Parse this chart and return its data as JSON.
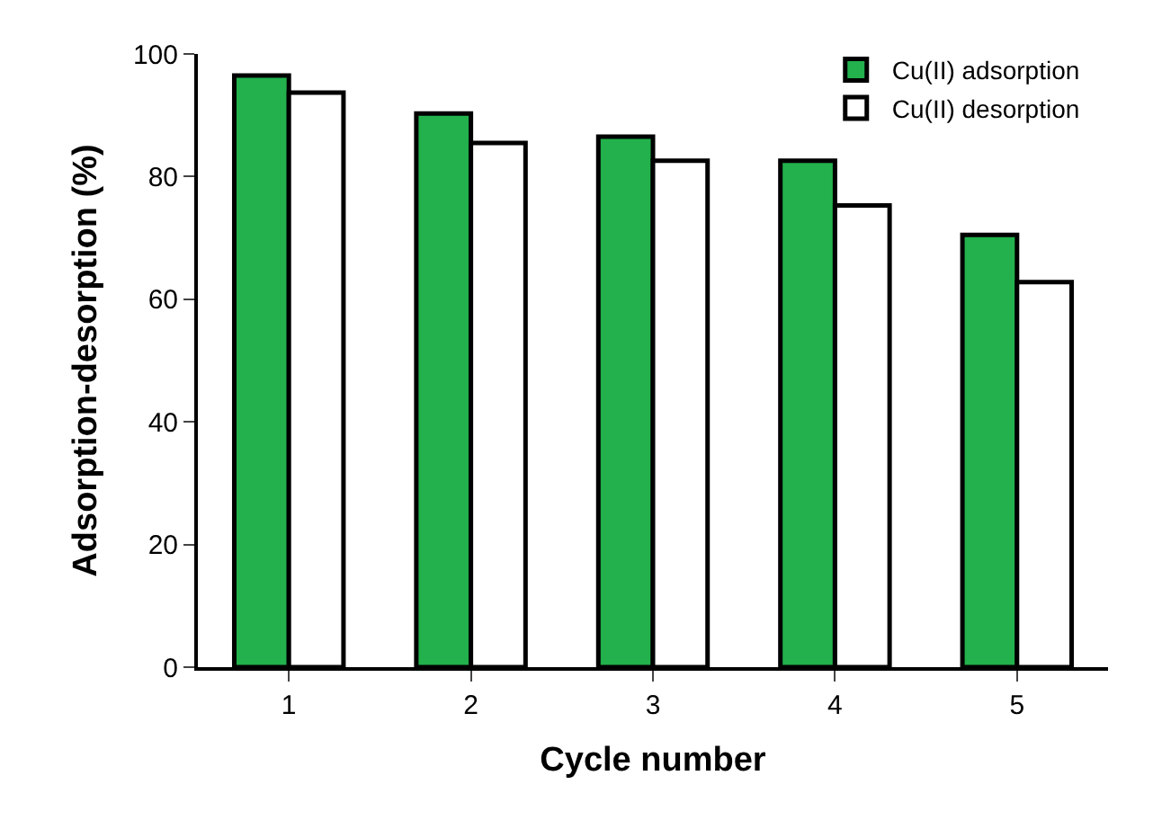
{
  "chart_data": {
    "type": "bar",
    "xlabel": "Cycle number",
    "ylabel": "Adsorption-desorption (%)",
    "categories": [
      "1",
      "2",
      "3",
      "4",
      "5"
    ],
    "series": [
      {
        "name": "Cu(II) adsorption",
        "color": "#22b14c",
        "values": [
          96.5,
          90.3,
          86.5,
          82.6,
          70.5
        ]
      },
      {
        "name": "Cu(II) desorption",
        "color": "#ffffff",
        "values": [
          93.7,
          85.5,
          82.6,
          75.3,
          62.8
        ]
      }
    ],
    "ylim": [
      0,
      100
    ],
    "yticks": [
      0,
      20,
      40,
      60,
      80,
      100
    ],
    "legend": "top right"
  }
}
